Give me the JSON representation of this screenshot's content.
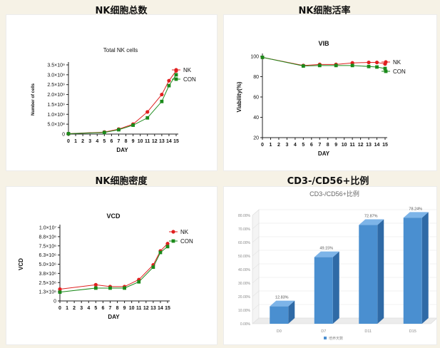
{
  "panels": [
    {
      "heading": "NK细胞总数",
      "chart_data": {
        "type": "line",
        "title": "Total NK cells",
        "xlabel": "DAY",
        "ylabel": "Number of cells",
        "xlim": [
          0,
          15
        ],
        "ylim": [
          0,
          3.5
        ],
        "x_ticks": [
          "0",
          "1",
          "2",
          "3",
          "4",
          "5",
          "6",
          "7",
          "8",
          "9",
          "10",
          "11",
          "12",
          "13",
          "14",
          "15"
        ],
        "y_ticks": [
          "0",
          "5.0×10⁸",
          "1.0×10⁹",
          "1.5×10⁹",
          "2.0×10⁹",
          "2.5×10⁹",
          "3.0×10⁹",
          "3.5×10⁹"
        ],
        "y_tick_values": [
          0,
          0.5,
          1.0,
          1.5,
          2.0,
          2.5,
          3.0,
          3.5
        ],
        "legend": "top-right",
        "series": [
          {
            "name": "NK",
            "color": "#e02020",
            "marker": "circle",
            "x": [
              0,
              5,
              7,
              9,
              11,
              13,
              14,
              15
            ],
            "y": [
              0.02,
              0.1,
              0.25,
              0.5,
              1.12,
              2.0,
              2.7,
              3.2
            ]
          },
          {
            "name": "CON",
            "color": "#1a8a1a",
            "marker": "square",
            "x": [
              0,
              5,
              7,
              9,
              11,
              13,
              14,
              15
            ],
            "y": [
              0.02,
              0.08,
              0.22,
              0.45,
              0.82,
              1.65,
              2.45,
              3.0
            ]
          }
        ]
      }
    },
    {
      "heading": "NK细胞活率",
      "chart_data": {
        "type": "line",
        "title": "VIB",
        "xlabel": "DAY",
        "ylabel": "Viability(%)",
        "xlim": [
          0,
          15
        ],
        "ylim": [
          20,
          100
        ],
        "x_ticks": [
          "0",
          "1",
          "2",
          "3",
          "4",
          "5",
          "6",
          "7",
          "8",
          "9",
          "10",
          "11",
          "12",
          "13",
          "14",
          "15"
        ],
        "y_ticks": [
          "20",
          "40",
          "60",
          "80",
          "100"
        ],
        "y_tick_values": [
          20,
          40,
          60,
          80,
          100
        ],
        "legend": "top-right",
        "series": [
          {
            "name": "NK",
            "color": "#e02020",
            "marker": "circle",
            "x": [
              0,
              5,
              7,
              9,
              11,
              13,
              14,
              15
            ],
            "y": [
              99,
              91,
              92,
              92,
              93.5,
              94,
              94,
              92.5
            ]
          },
          {
            "name": "CON",
            "color": "#1a8a1a",
            "marker": "square",
            "x": [
              0,
              5,
              7,
              9,
              11,
              13,
              14,
              15
            ],
            "y": [
              99,
              90.5,
              91,
              91,
              91,
              90,
              89.5,
              88
            ]
          }
        ]
      }
    },
    {
      "heading": "NK细胞密度",
      "chart_data": {
        "type": "line",
        "title": "VCD",
        "xlabel": "DAY",
        "ylabel": "VCD",
        "xlim": [
          0,
          15
        ],
        "ylim": [
          0,
          10
        ],
        "x_ticks": [
          "0",
          "1",
          "2",
          "3",
          "4",
          "5",
          "6",
          "7",
          "8",
          "9",
          "10",
          "11",
          "12",
          "13",
          "14",
          "15"
        ],
        "y_ticks": [
          "0",
          "1.3×10⁶",
          "2.5×10⁶",
          "3.8×10⁶",
          "5.0×10⁶",
          "6.3×10⁶",
          "7.5×10⁶",
          "8.8×10⁶",
          "1.0×10⁷"
        ],
        "y_tick_values": [
          0,
          1.25,
          2.5,
          3.75,
          5.0,
          6.25,
          7.5,
          8.75,
          10.0
        ],
        "legend": "top-right",
        "series": [
          {
            "name": "NK",
            "color": "#e02020",
            "marker": "circle",
            "x": [
              0,
              5,
              7,
              9,
              11,
              13,
              14,
              15
            ],
            "y": [
              1.6,
              2.2,
              1.95,
              1.95,
              2.9,
              4.9,
              6.8,
              7.8
            ]
          },
          {
            "name": "CON",
            "color": "#1a8a1a",
            "marker": "square",
            "x": [
              0,
              5,
              7,
              9,
              11,
              13,
              14,
              15
            ],
            "y": [
              1.2,
              1.75,
              1.75,
              1.75,
              2.6,
              4.6,
              6.6,
              7.4
            ]
          }
        ]
      }
    },
    {
      "heading": "CD3-/CD56+比例",
      "chart_data": {
        "type": "bar",
        "title": "CD3-/CD56+比例",
        "categories": [
          "D0",
          "D7",
          "D11",
          "D15"
        ],
        "series": [
          {
            "name": "培养天数",
            "color": "#4a8fd0",
            "values": [
              12.83,
              49.15,
              72.87,
              78.24
            ]
          }
        ],
        "value_labels": [
          "12.83%",
          "49.15%",
          "72.87%",
          "78.24%"
        ],
        "ylim": [
          0,
          80
        ],
        "y_ticks": [
          "0.00%",
          "10.00%",
          "20.00%",
          "30.00%",
          "40.00%",
          "50.00%",
          "60.00%",
          "70.00%",
          "80.00%"
        ],
        "y_tick_values": [
          0,
          10,
          20,
          30,
          40,
          50,
          60,
          70,
          80
        ],
        "legend": "bottom"
      }
    }
  ]
}
